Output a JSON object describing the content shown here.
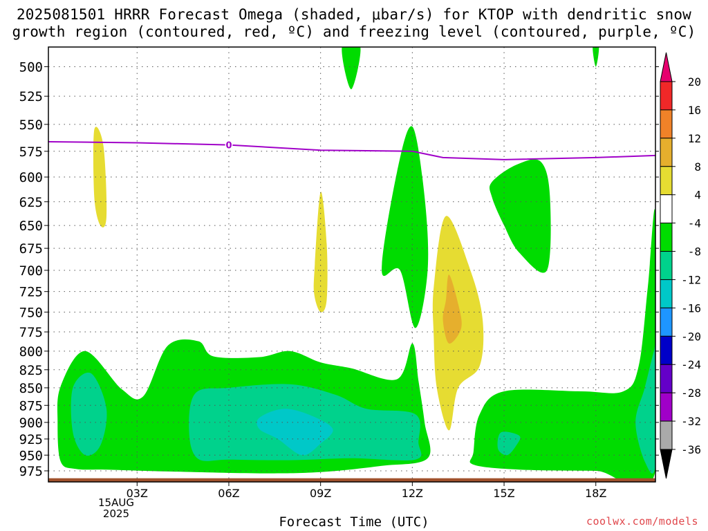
{
  "title_line1": "2025081501 HRRR Forecast Omega (shaded, μbar/s) for KTOP with dendritic snow",
  "title_line2": "growth region (contoured, red, ºC) and freezing level (contoured, purple, ºC)",
  "xlabel": "Forecast Time (UTC)",
  "credit": "coolwx.com/models",
  "date_label": [
    "15AUG",
    "2025"
  ],
  "chart_data": {
    "type": "heatmap",
    "x_ticks": [
      "03Z",
      "06Z",
      "09Z",
      "12Z",
      "15Z",
      "18Z"
    ],
    "x_tick_hours": [
      3,
      6,
      9,
      12,
      15,
      18
    ],
    "x_range_hours": [
      0.1,
      19.95
    ],
    "y_ticks": [
      500,
      525,
      550,
      575,
      600,
      625,
      650,
      675,
      700,
      725,
      750,
      775,
      800,
      825,
      850,
      875,
      900,
      925,
      950,
      975
    ],
    "y_range_mb": [
      484,
      993
    ],
    "y_scale": "log-pressure",
    "grid": true,
    "colorbar": {
      "labels": [
        "20",
        "16",
        "12",
        "8",
        "4",
        "-4",
        "-8",
        "-12",
        "-16",
        "-20",
        "-24",
        "-28",
        "-32",
        "-36"
      ],
      "boundaries": [
        20,
        16,
        12,
        8,
        4,
        -4,
        -8,
        -12,
        -16,
        -20,
        -24,
        -28,
        -32,
        -36
      ],
      "colors": [
        "#f02828",
        "#f08228",
        "#e6af2d",
        "#e6dc32",
        "#ffffff",
        "#00dc00",
        "#00d28c",
        "#00c8c8",
        "#1e96ff",
        "#0000c8",
        "#6400c8",
        "#a000c8",
        "#aaaaaa"
      ],
      "top_triangle_color": "#e6006e",
      "bottom_triangle_color": "#000000"
    },
    "freezing_level": {
      "label": "0",
      "color": "#a000c8",
      "points": [
        [
          0.1,
          566
        ],
        [
          3,
          567
        ],
        [
          6,
          569
        ],
        [
          9,
          574
        ],
        [
          12,
          575
        ],
        [
          13,
          581
        ],
        [
          15,
          583
        ],
        [
          18,
          581
        ],
        [
          19.95,
          579
        ]
      ]
    },
    "omega_regions": [
      {
        "level": "-4 to -8",
        "color": "#00dc00",
        "points": [
          [
            0.5,
            848
          ],
          [
            1.3,
            800
          ],
          [
            2.5,
            852
          ],
          [
            3.2,
            862
          ],
          [
            4,
            793
          ],
          [
            5,
            787
          ],
          [
            5.5,
            807
          ],
          [
            7,
            808
          ],
          [
            8,
            800
          ],
          [
            9,
            815
          ],
          [
            10,
            823
          ],
          [
            11.5,
            838
          ],
          [
            12,
            790
          ],
          [
            12.2,
            840
          ],
          [
            12.4,
            900
          ],
          [
            12.5,
            955
          ],
          [
            11,
            967
          ],
          [
            9,
            977
          ],
          [
            7,
            979
          ],
          [
            4,
            976
          ],
          [
            2,
            973
          ],
          [
            1,
            972
          ],
          [
            0.5,
            960
          ],
          [
            0.4,
            900
          ]
        ]
      },
      {
        "level": "-8 to -12",
        "color": "#00d28c",
        "points": [
          [
            0.9,
            850
          ],
          [
            1.5,
            830
          ],
          [
            2.0,
            880
          ],
          [
            1.8,
            935
          ],
          [
            1.3,
            950
          ],
          [
            0.9,
            915
          ]
        ]
      },
      {
        "level": "-8 to -12",
        "color": "#00d28c",
        "points": [
          [
            4.9,
            858
          ],
          [
            6,
            850
          ],
          [
            8,
            845
          ],
          [
            9.5,
            860
          ],
          [
            10.5,
            880
          ],
          [
            12.1,
            888
          ],
          [
            12.2,
            930
          ],
          [
            12.1,
            957
          ],
          [
            10,
            955
          ],
          [
            8,
            958
          ],
          [
            6,
            957
          ],
          [
            5,
            956
          ],
          [
            4.7,
            915
          ]
        ]
      },
      {
        "level": "-12 to -16",
        "color": "#00c8c8",
        "points": [
          [
            7,
            893
          ],
          [
            7.8,
            880
          ],
          [
            8.7,
            890
          ],
          [
            9.4,
            910
          ],
          [
            9,
            932
          ],
          [
            8.4,
            950
          ],
          [
            7.6,
            925
          ],
          [
            7,
            910
          ]
        ]
      },
      {
        "level": "-4 to -8",
        "color": "#00dc00",
        "points": [
          [
            11.0,
            700
          ],
          [
            11.5,
            595
          ],
          [
            12,
            552
          ],
          [
            12.4,
            620
          ],
          [
            12.5,
            700
          ],
          [
            12.1,
            770
          ],
          [
            11.6,
            700
          ]
        ]
      },
      {
        "level": "-4 to -8",
        "color": "#00dc00",
        "points": [
          [
            14.2,
            888
          ],
          [
            15,
            855
          ],
          [
            17.5,
            855
          ],
          [
            18.9,
            855
          ],
          [
            19.4,
            820
          ],
          [
            19.7,
            720
          ],
          [
            19.95,
            640
          ],
          [
            19.95,
            975
          ],
          [
            18,
            975
          ],
          [
            15.5,
            973
          ],
          [
            14,
            965
          ],
          [
            14,
            945
          ]
        ]
      },
      {
        "level": "-8 to -12",
        "color": "#00d28c",
        "points": [
          [
            14.9,
            915
          ],
          [
            15.5,
            920
          ],
          [
            15.4,
            935
          ],
          [
            15.1,
            950
          ],
          [
            14.8,
            940
          ]
        ]
      },
      {
        "level": "-8 to -12",
        "color": "#00d28c",
        "points": [
          [
            19.9,
            800
          ],
          [
            19.95,
            800
          ],
          [
            19.95,
            965
          ],
          [
            19.6,
            960
          ],
          [
            19.3,
            900
          ],
          [
            19.6,
            850
          ]
        ]
      },
      {
        "level": "-4 to -8",
        "color": "#00dc00",
        "points": [
          [
            14.6,
            605
          ],
          [
            15.4,
            588
          ],
          [
            16.2,
            585
          ],
          [
            16.5,
            620
          ],
          [
            16.4,
            700
          ],
          [
            15.5,
            680
          ],
          [
            15,
            650
          ],
          [
            14.6,
            620
          ]
        ]
      },
      {
        "level": "-4 to -8",
        "color": "#00dc00",
        "points": [
          [
            9.7,
            484
          ],
          [
            10.3,
            484
          ],
          [
            10.0,
            519
          ]
        ]
      },
      {
        "level": "-4 to -8",
        "color": "#00dc00",
        "points": [
          [
            17.9,
            484
          ],
          [
            18.1,
            484
          ],
          [
            18.0,
            500
          ]
        ]
      },
      {
        "level": "4 to 8",
        "color": "#e6dc32",
        "points": [
          [
            1.6,
            555
          ],
          [
            1.9,
            570
          ],
          [
            2.0,
            640
          ],
          [
            1.8,
            650
          ],
          [
            1.6,
            620
          ]
        ]
      },
      {
        "level": "4 to 8",
        "color": "#e6dc32",
        "points": [
          [
            8.8,
            700
          ],
          [
            9.0,
            615
          ],
          [
            9.2,
            670
          ],
          [
            9.2,
            735
          ],
          [
            9.0,
            750
          ],
          [
            8.8,
            730
          ]
        ]
      },
      {
        "level": "4 to 8",
        "color": "#e6dc32",
        "points": [
          [
            12.7,
            720
          ],
          [
            13.1,
            640
          ],
          [
            13.9,
            700
          ],
          [
            14.3,
            760
          ],
          [
            14.2,
            820
          ],
          [
            13.5,
            850
          ],
          [
            13.2,
            912
          ],
          [
            12.8,
            850
          ],
          [
            12.7,
            780
          ]
        ]
      },
      {
        "level": "8 to 12",
        "color": "#e6af2d",
        "points": [
          [
            13.1,
            735
          ],
          [
            13.2,
            705
          ],
          [
            13.5,
            740
          ],
          [
            13.6,
            770
          ],
          [
            13.2,
            790
          ],
          [
            13.0,
            760
          ]
        ]
      }
    ],
    "surface_band": {
      "color": "#a0522d",
      "from_mb": 987,
      "to_mb": 993
    }
  }
}
